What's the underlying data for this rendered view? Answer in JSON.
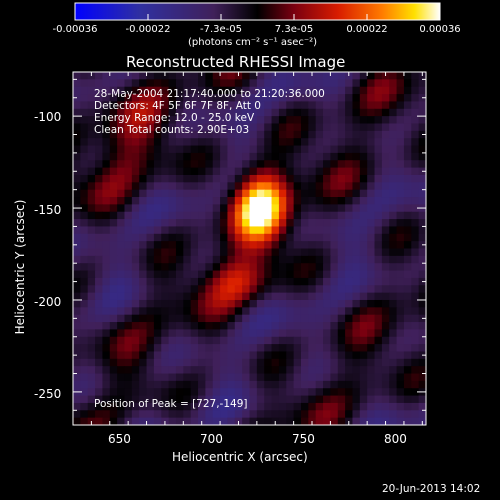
{
  "chart_data": {
    "type": "heatmap",
    "title": "Reconstructed RHESSI Image",
    "xlabel": "Heliocentric X (arcsec)",
    "ylabel": "Heliocentric Y (arcsec)",
    "xlim": [
      625,
      817
    ],
    "ylim": [
      -268,
      -76
    ],
    "x_ticks": [
      650,
      700,
      750,
      800
    ],
    "y_ticks": [
      -100,
      -150,
      -200,
      -250
    ],
    "colorbar": {
      "range": [
        -0.00036,
        0.00036
      ],
      "ticks": [
        "-0.00036",
        "-0.00022",
        "-7.3e-05",
        "7.3e-05",
        "0.00022",
        "0.00036"
      ],
      "unit_label": "(photons cm⁻² s⁻¹ asec⁻²)",
      "colors": [
        "#0000ff",
        "#3030a0",
        "#40205a",
        "#000000",
        "#7a0010",
        "#d81c00",
        "#ff7a00",
        "#ffe000",
        "#ffffff"
      ]
    },
    "annotations": {
      "time_range": "28-May-2004 21:17:40.000 to 21:20:36.000",
      "detectors": "Detectors: 4F 5F 6F 7F 8F, Att 0",
      "energy_range": "Energy Range: 12.0 - 25.0 keV",
      "clean_counts": "Clean     Total counts: 2.90E+03",
      "peak_position": "Position of Peak = [727,-149]"
    },
    "peak": {
      "x": 727,
      "y": -149
    },
    "date_stamp": "20-Jun-2013 14:02"
  }
}
